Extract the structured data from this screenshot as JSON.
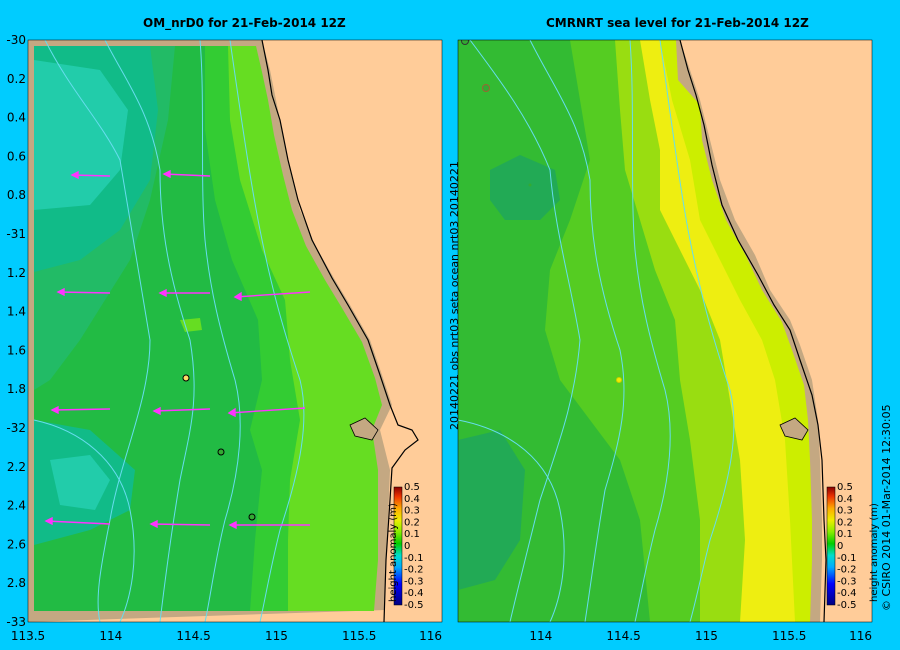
{
  "left_panel": {
    "title": "OM_nrD0 for 21-Feb-2014 12Z",
    "y_ticks": [
      "-30",
      "0.2",
      "0.4",
      "0.6",
      "0.8",
      "-31",
      "1.2",
      "1.4",
      "1.6",
      "1.8",
      "-32",
      "2.2",
      "2.4",
      "2.6",
      "2.8",
      "-33"
    ],
    "x_ticks": [
      "113.5",
      "114",
      "114.5",
      "115",
      "115.5",
      "116"
    ],
    "colorbar": {
      "label": "height anomaly (m)",
      "ticks": [
        "0.5",
        "0.4",
        "0.3",
        "0.2",
        "0.1",
        "0",
        "-0.1",
        "-0.2",
        "-0.3",
        "-0.4",
        "-0.5"
      ]
    }
  },
  "right_panel": {
    "title": "CMRNRT sea level  for 21-Feb-2014 12Z",
    "x_ticks": [
      "114",
      "114.5",
      "115",
      "115.5",
      "116"
    ],
    "side_label": "20140221 obs  nrt03  seta      ocean  nrt03  20140221",
    "colorbar": {
      "label": "height anomaly (m)",
      "ticks": [
        "0.5",
        "0.4",
        "0.3",
        "0.2",
        "0.1",
        "0",
        "-0.1",
        "-0.2",
        "-0.3",
        "-0.4",
        "-0.5"
      ]
    }
  },
  "credit": "© CSIRO 2014   01-Mar-2014 12:30:05",
  "colors": {
    "background": "#00ccff",
    "land": "#ffcc99",
    "shelf": "#c4a882",
    "vector": "#ff33ff",
    "contour": "#66ddee"
  }
}
